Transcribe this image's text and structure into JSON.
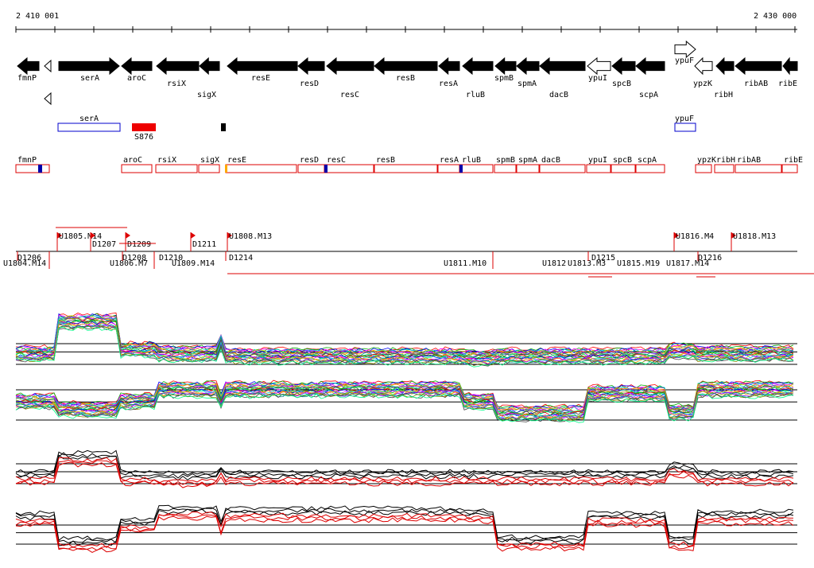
{
  "coords": {
    "start_label": "2 410 001",
    "end_label": "2 430 000"
  },
  "genes": [
    {
      "name": "fmnP",
      "dir": "left",
      "filled": true
    },
    {
      "name": "serA",
      "dir": "right",
      "filled": true
    },
    {
      "name": "aroC",
      "dir": "left",
      "filled": true
    },
    {
      "name": "rsiX",
      "dir": "left",
      "filled": true
    },
    {
      "name": "sigX",
      "dir": "left",
      "filled": true
    },
    {
      "name": "resE",
      "dir": "left",
      "filled": true
    },
    {
      "name": "resD",
      "dir": "left",
      "filled": true
    },
    {
      "name": "resC",
      "dir": "left",
      "filled": true
    },
    {
      "name": "resB",
      "dir": "left",
      "filled": true
    },
    {
      "name": "resA",
      "dir": "left",
      "filled": true
    },
    {
      "name": "rluB",
      "dir": "left",
      "filled": true
    },
    {
      "name": "spmB",
      "dir": "left",
      "filled": true
    },
    {
      "name": "spmA",
      "dir": "left",
      "filled": true
    },
    {
      "name": "dacB",
      "dir": "left",
      "filled": true
    },
    {
      "name": "ypuI",
      "dir": "left",
      "filled": false
    },
    {
      "name": "spcB",
      "dir": "left",
      "filled": true
    },
    {
      "name": "scpA",
      "dir": "left",
      "filled": true
    },
    {
      "name": "ypuF",
      "dir": "right",
      "filled": false
    },
    {
      "name": "ypzK",
      "dir": "left",
      "filled": false
    },
    {
      "name": "ribH",
      "dir": "left",
      "filled": true
    },
    {
      "name": "ribAB",
      "dir": "left",
      "filled": true
    },
    {
      "name": "ribE",
      "dir": "left",
      "filled": true
    }
  ],
  "annotations": [
    {
      "label": "serA",
      "kind": "outline-blue"
    },
    {
      "label": "S876",
      "kind": "red-block"
    },
    {
      "label": "ypuF",
      "kind": "outline-blue"
    }
  ],
  "transcripts": [
    "fmnP",
    "aroC",
    "rsiX",
    "sigX",
    "resE",
    "resD",
    "resC",
    "resB",
    "resA",
    "rluB",
    "spmB",
    "spmA",
    "dacB",
    "ypuI",
    "spcB",
    "scpA",
    "ypzK",
    "ribH",
    "ribAB",
    "ribE"
  ],
  "upstream_labels": [
    "U1805.M14",
    "D1207",
    "D1209",
    "D1211",
    "U1808.M13",
    "U1816.M4",
    "U1818.M13"
  ],
  "downstream_labels": [
    "D1206",
    "U1804.M14",
    "D1208",
    "U1806.M7",
    "D1210",
    "U1809.M14",
    "D1214",
    "U1811.M10",
    "U1812",
    "U1813.M3",
    "D1215",
    "U1815.M19",
    "U1817.M14",
    "D1216"
  ]
}
